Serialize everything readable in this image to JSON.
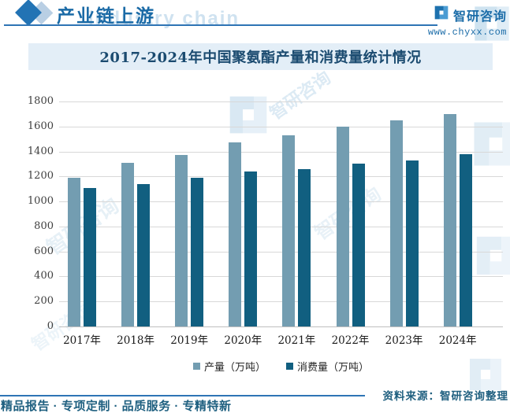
{
  "header": {
    "section_title": "产业链上游",
    "brand_name": "智研咨询",
    "brand_url": "www.chyxx.com"
  },
  "chart_data": {
    "type": "bar",
    "title": "2017-2024年中国聚氨酯产量和消费量统计情况",
    "categories": [
      "2017年",
      "2018年",
      "2019年",
      "2020年",
      "2021年",
      "2022年",
      "2023年",
      "2024年"
    ],
    "series": [
      {
        "name": "产量（万吨）",
        "color": "#739db1",
        "values": [
          1190,
          1310,
          1370,
          1470,
          1530,
          1600,
          1650,
          1700
        ]
      },
      {
        "name": "消费量（万吨）",
        "color": "#115f80",
        "values": [
          1110,
          1140,
          1190,
          1240,
          1260,
          1300,
          1330,
          1380
        ]
      }
    ],
    "ylim": [
      0,
      1800
    ],
    "ytick_step": 200,
    "grid": true,
    "legend_position": "bottom"
  },
  "footer": {
    "source_note": "资料来源：智研咨询整理",
    "tagline": "精品报告 · 专项定制 · 品质服务 · 专精特新"
  },
  "watermark": {
    "cjk_text": "智研咨询",
    "latin_text": "industry chain"
  },
  "colors": {
    "accent_blue": "#2e74b5",
    "banner_bg": "#e3eef7",
    "title_text": "#1b4b70",
    "production_bar": "#739db1",
    "consumption_bar": "#115f80"
  }
}
